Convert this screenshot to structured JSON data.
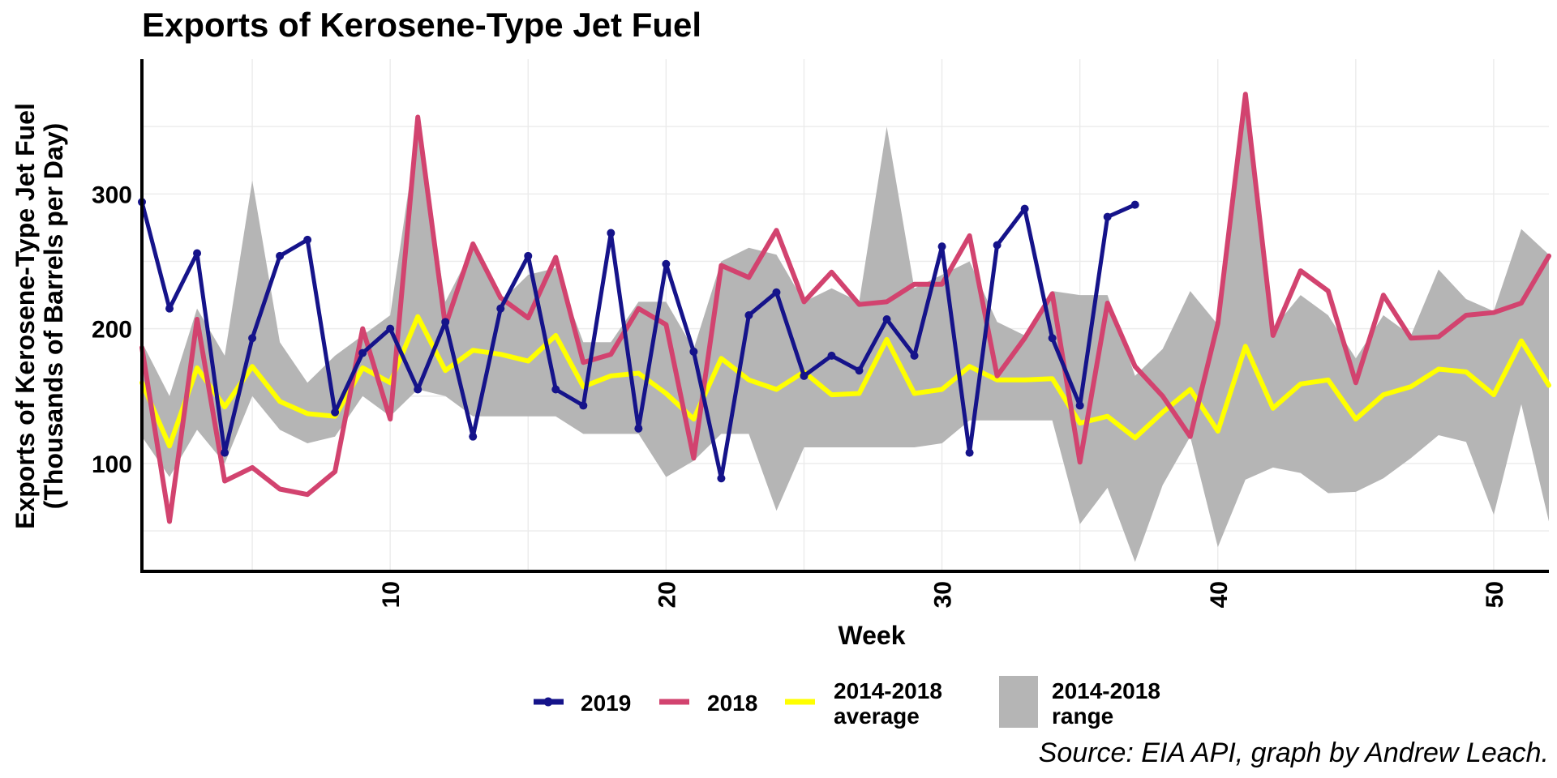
{
  "chart_data": {
    "type": "line",
    "title": "Exports of Kerosene-Type Jet Fuel",
    "xlabel": "Week",
    "ylabel_line1": "Exports of Kerosene-Type Jet Fuel",
    "ylabel_line2": "(Thousands of Barrels per Day)",
    "caption": "Source: EIA API, graph by Andrew Leach.",
    "xlim": [
      1,
      52
    ],
    "ylim": [
      20,
      400
    ],
    "x_ticks": [
      10,
      20,
      30,
      40,
      50
    ],
    "y_ticks": [
      100,
      200,
      300
    ],
    "legend_position": "bottom",
    "colors": {
      "2019": "#15138a",
      "2018": "#d2436f",
      "average": "#ffff00",
      "range": "#b5b5b5"
    },
    "legend": {
      "items": [
        {
          "key": "2019",
          "line1": "2019",
          "line2": ""
        },
        {
          "key": "2018",
          "line1": "2018",
          "line2": ""
        },
        {
          "key": "average",
          "line1": "2014-2018",
          "line2": "average"
        },
        {
          "key": "range",
          "line1": "2014-2018",
          "line2": "range"
        }
      ]
    },
    "series": [
      {
        "name": "2019",
        "x": [
          1,
          2,
          3,
          4,
          5,
          6,
          7,
          8,
          9,
          10,
          11,
          12,
          13,
          14,
          15,
          16,
          17,
          18,
          19,
          20,
          21,
          22,
          23,
          24,
          25,
          26,
          27,
          28,
          29,
          30,
          31,
          32,
          33,
          34,
          35,
          36,
          37
        ],
        "values": [
          294,
          215,
          256,
          108,
          193,
          254,
          266,
          138,
          182,
          200,
          155,
          205,
          120,
          215,
          254,
          155,
          143,
          271,
          126,
          248,
          183,
          89,
          210,
          227,
          165,
          180,
          169,
          207,
          180,
          261,
          108,
          262,
          289,
          193,
          143,
          283,
          292
        ]
      },
      {
        "name": "2018",
        "x": [
          1,
          2,
          3,
          4,
          5,
          6,
          7,
          8,
          9,
          10,
          11,
          12,
          13,
          14,
          15,
          16,
          17,
          18,
          19,
          20,
          21,
          22,
          23,
          24,
          25,
          26,
          27,
          28,
          29,
          30,
          31,
          32,
          33,
          34,
          35,
          36,
          37,
          38,
          39,
          40,
          41,
          42,
          43,
          44,
          45,
          46,
          47,
          48,
          49,
          50,
          51,
          52
        ],
        "values": [
          186,
          57,
          207,
          87,
          97,
          81,
          77,
          94,
          200,
          133,
          357,
          202,
          263,
          223,
          208,
          253,
          175,
          181,
          215,
          203,
          104,
          247,
          238,
          273,
          220,
          242,
          218,
          220,
          233,
          233,
          269,
          165,
          193,
          226,
          101,
          219,
          172,
          150,
          120,
          204,
          374,
          195,
          243,
          228,
          160,
          225,
          193,
          194,
          210,
          212,
          219,
          254
        ]
      },
      {
        "name": "2014-2018 average",
        "x": [
          1,
          2,
          3,
          4,
          5,
          6,
          7,
          8,
          9,
          10,
          11,
          12,
          13,
          14,
          15,
          16,
          17,
          18,
          19,
          20,
          21,
          22,
          23,
          24,
          25,
          26,
          27,
          28,
          29,
          30,
          31,
          32,
          33,
          34,
          35,
          36,
          37,
          38,
          39,
          40,
          41,
          42,
          43,
          44,
          45,
          46,
          47,
          48,
          49,
          50,
          51,
          52
        ],
        "values": [
          160,
          113,
          171,
          142,
          172,
          146,
          137,
          135,
          171,
          160,
          209,
          169,
          184,
          181,
          176,
          195,
          157,
          165,
          167,
          152,
          133,
          178,
          162,
          155,
          168,
          151,
          152,
          192,
          152,
          155,
          172,
          162,
          162,
          163,
          130,
          135,
          119,
          138,
          155,
          124,
          187,
          141,
          159,
          162,
          133,
          151,
          157,
          170,
          168,
          151,
          191,
          158
        ]
      },
      {
        "name": "2014-2018 range",
        "x": [
          1,
          2,
          3,
          4,
          5,
          6,
          7,
          8,
          9,
          10,
          11,
          12,
          13,
          14,
          15,
          16,
          17,
          18,
          19,
          20,
          21,
          22,
          23,
          24,
          25,
          26,
          27,
          28,
          29,
          30,
          31,
          32,
          33,
          34,
          35,
          36,
          37,
          38,
          39,
          40,
          41,
          42,
          43,
          44,
          45,
          46,
          47,
          48,
          49,
          50,
          51,
          52
        ],
        "low": [
          120,
          90,
          125,
          100,
          150,
          125,
          115,
          120,
          150,
          135,
          155,
          150,
          135,
          135,
          135,
          135,
          122,
          122,
          122,
          90,
          102,
          122,
          122,
          65,
          112,
          112,
          112,
          112,
          112,
          115,
          132,
          132,
          132,
          132,
          55,
          82,
          27,
          84,
          120,
          38,
          88,
          97,
          93,
          78,
          79,
          89,
          104,
          121,
          116,
          62,
          144,
          57
        ],
        "high": [
          190,
          150,
          215,
          180,
          310,
          190,
          160,
          180,
          195,
          210,
          350,
          220,
          260,
          220,
          240,
          245,
          190,
          190,
          220,
          220,
          185,
          250,
          260,
          255,
          220,
          230,
          220,
          350,
          230,
          240,
          250,
          205,
          195,
          228,
          225,
          225,
          165,
          185,
          228,
          203,
          375,
          200,
          225,
          210,
          178,
          210,
          195,
          244,
          222,
          213,
          274,
          255
        ]
      }
    ]
  }
}
